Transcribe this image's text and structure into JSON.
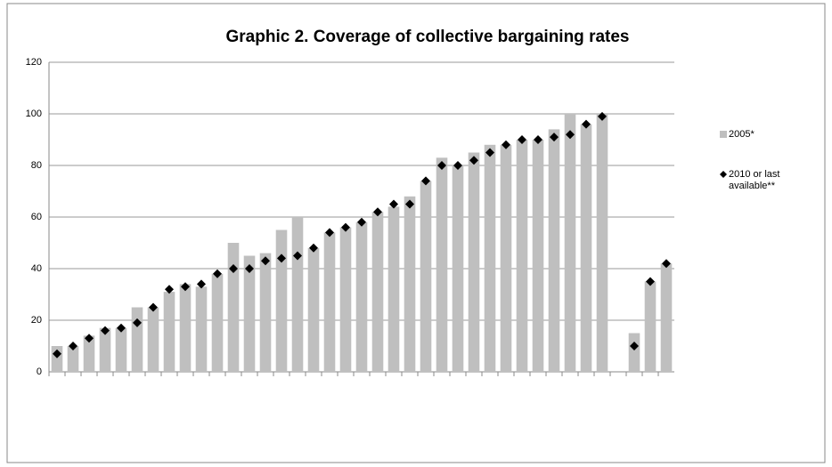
{
  "chart_data": {
    "type": "bar",
    "title": "Graphic 2. Coverage of collective bargaining rates",
    "categories": [
      null,
      null,
      null,
      null,
      null,
      null,
      null,
      null,
      null,
      null,
      null,
      null,
      null,
      null,
      null,
      null,
      null,
      null,
      null,
      null,
      null,
      null,
      null,
      null,
      null,
      null,
      null,
      null,
      null,
      null,
      null,
      null,
      null,
      null,
      null,
      null,
      null,
      null,
      null
    ],
    "series": [
      {
        "name": "2005*",
        "color": "#bfbfbf",
        "kind": "bar",
        "values": [
          10,
          10,
          14,
          17,
          17,
          25,
          25,
          31,
          34,
          33,
          38,
          50,
          45,
          46,
          55,
          60,
          48,
          54,
          56,
          58,
          62,
          64,
          68,
          74,
          83,
          80,
          85,
          88,
          88,
          90,
          90,
          94,
          100,
          96,
          100,
          null,
          15,
          35,
          42
        ]
      },
      {
        "name": "2010 or last available**",
        "color": "#000000",
        "kind": "marker",
        "values": [
          7,
          10,
          13,
          16,
          17,
          19,
          25,
          32,
          33,
          34,
          38,
          40,
          40,
          43,
          44,
          45,
          48,
          54,
          56,
          58,
          62,
          65,
          65,
          74,
          80,
          80,
          82,
          85,
          88,
          90,
          90,
          91,
          92,
          96,
          99,
          null,
          10,
          35,
          42
        ]
      }
    ],
    "ylim": [
      0,
      120
    ],
    "yticks": [
      0,
      20,
      40,
      60,
      80,
      100,
      120
    ],
    "grid": true
  }
}
